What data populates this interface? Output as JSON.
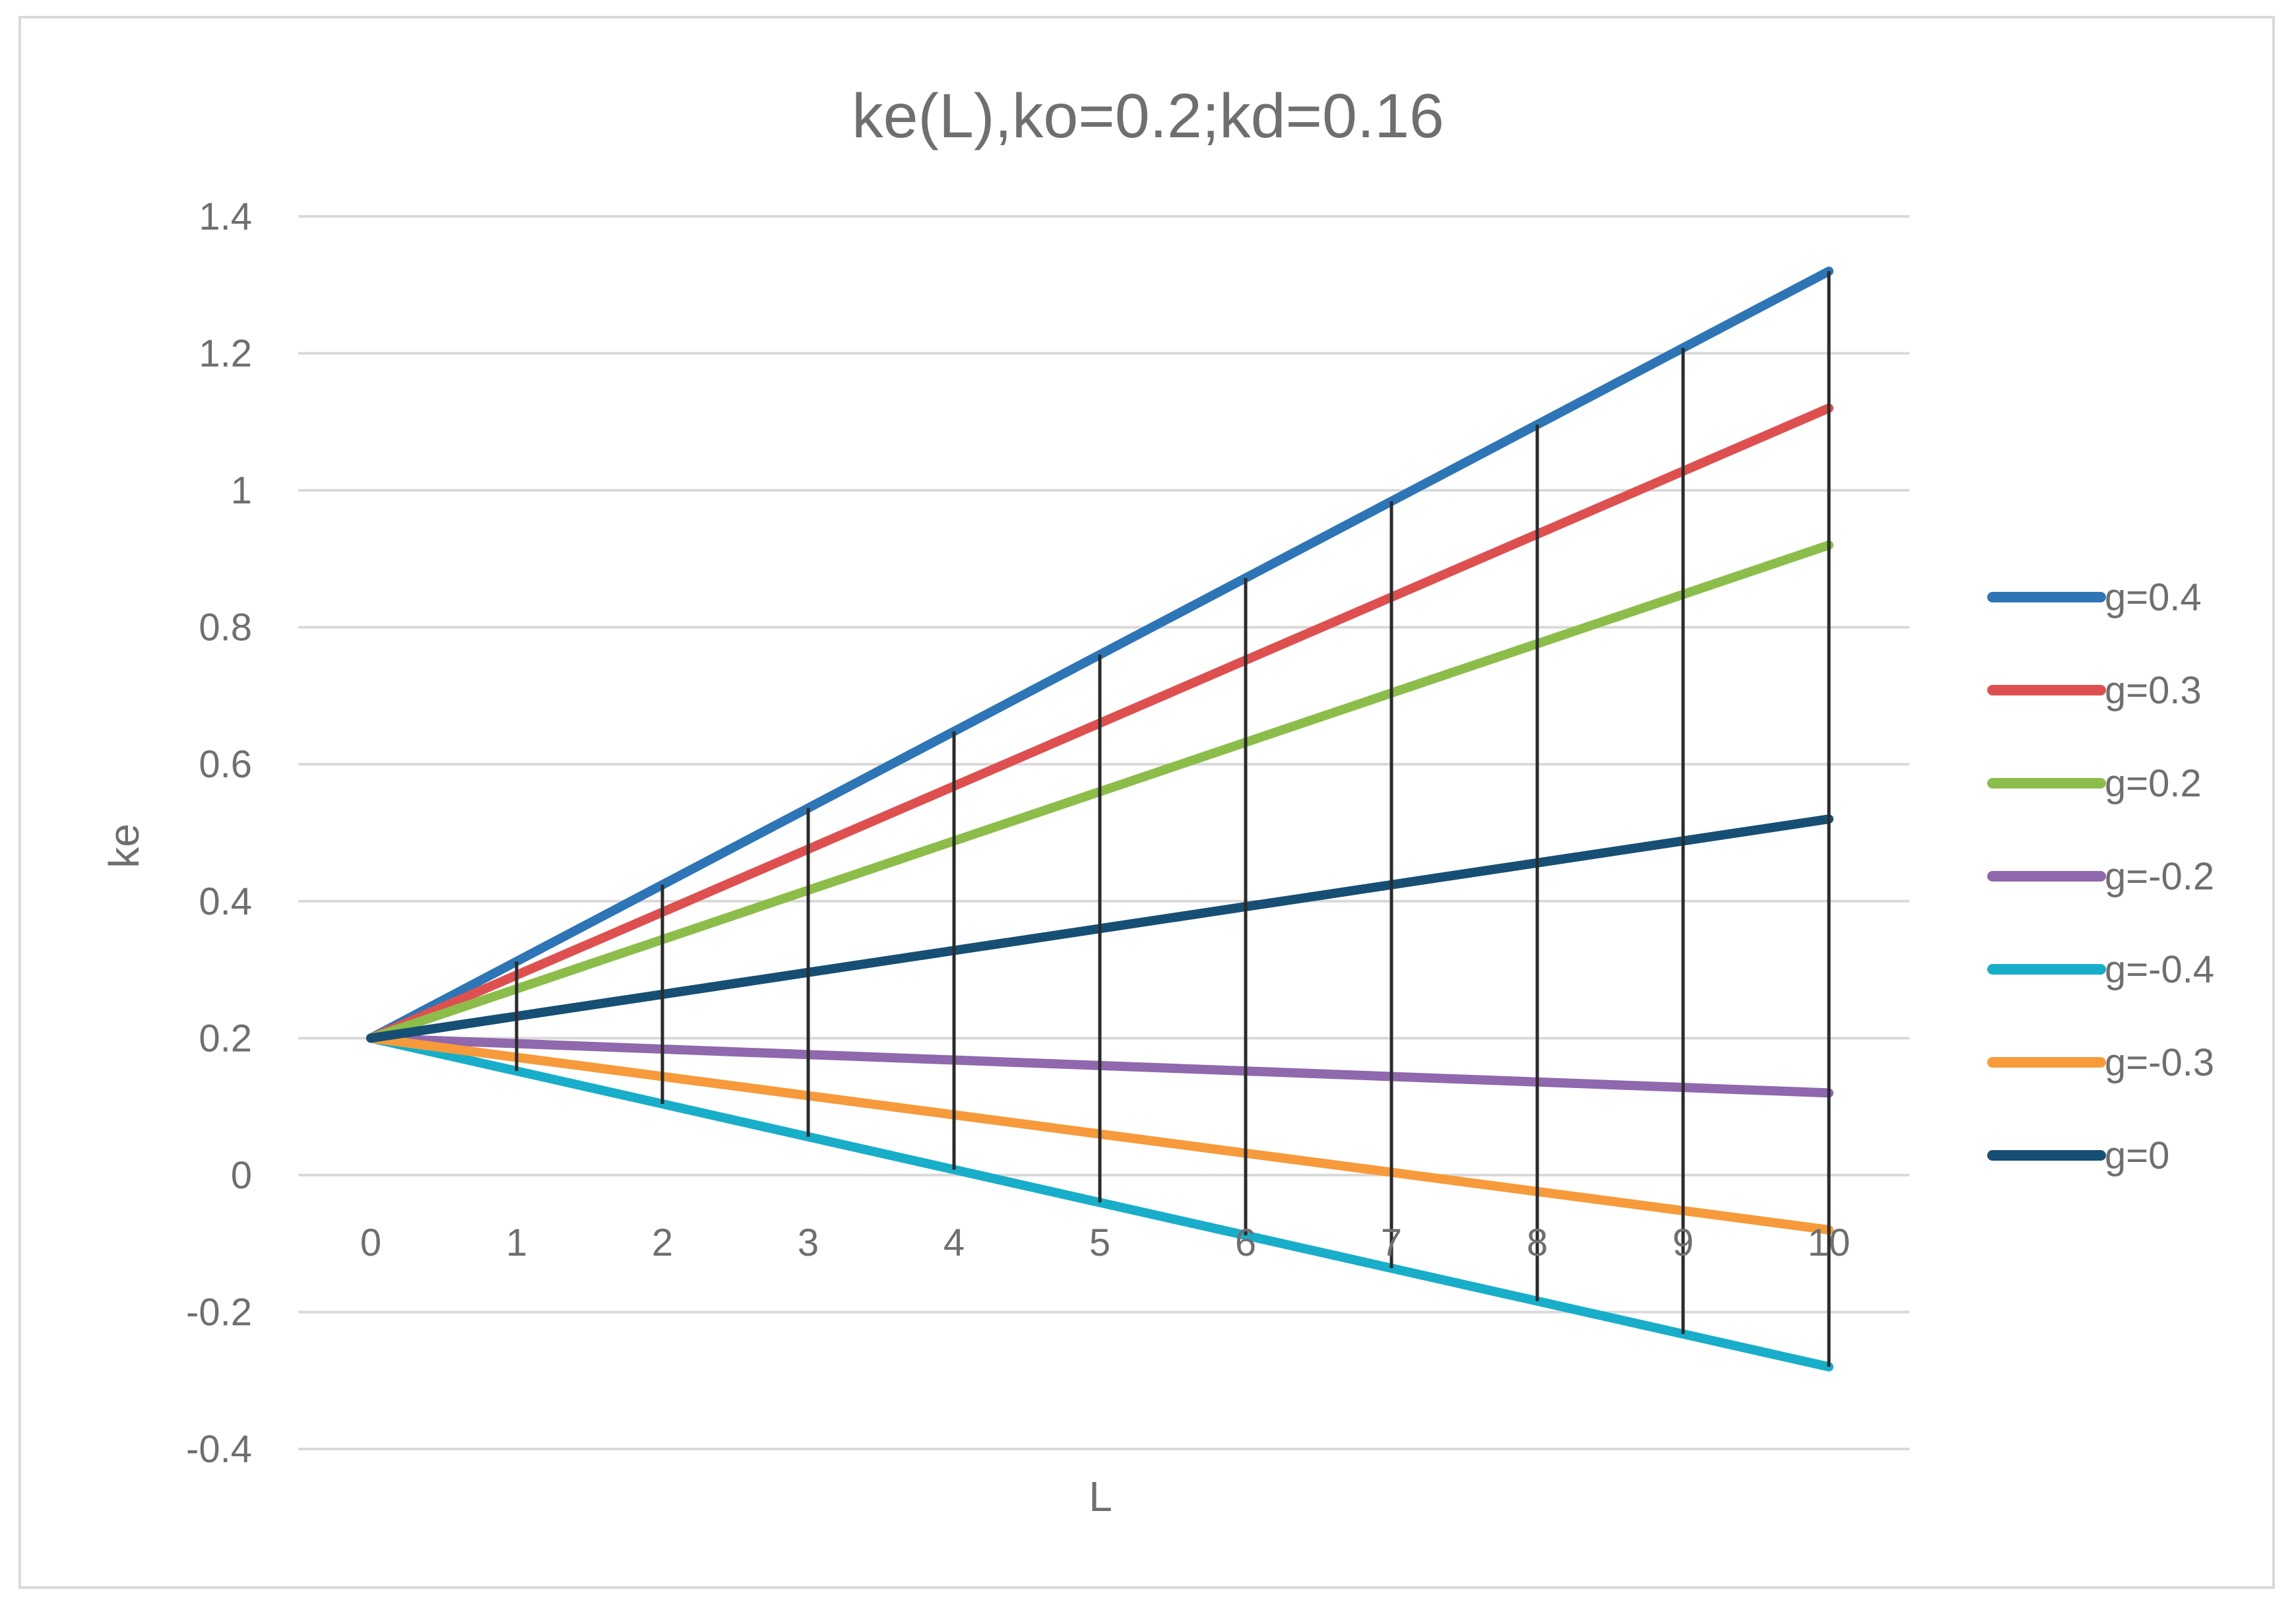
{
  "chart_data": {
    "type": "line",
    "title": "ke(L),ko=0.2;kd=0.16",
    "xlabel": "L",
    "ylabel": "ke",
    "categories": [
      "0",
      "1",
      "2",
      "3",
      "4",
      "5",
      "6",
      "7",
      "8",
      "9",
      "10"
    ],
    "x": [
      0,
      1,
      2,
      3,
      4,
      5,
      6,
      7,
      8,
      9,
      10
    ],
    "ylim": [
      -0.4,
      1.4
    ],
    "yticks": [
      -0.4,
      -0.2,
      0,
      0.2,
      0.4,
      0.6,
      0.8,
      1,
      1.2,
      1.4
    ],
    "ytick_labels": [
      "-0.4",
      "-0.2",
      "0",
      "0.2",
      "0.4",
      "0.6",
      "0.8",
      "1",
      "1.2",
      "1.4"
    ],
    "grid": true,
    "legend_position": "right",
    "series": [
      {
        "name": "g=0.4",
        "color": "#2e75b6",
        "values": [
          0.2,
          0.312,
          0.424,
          0.536,
          0.648,
          0.76,
          0.872,
          0.984,
          1.096,
          1.208,
          1.32
        ]
      },
      {
        "name": "g=0.3",
        "color": "#de5050",
        "values": [
          0.2,
          0.292,
          0.384,
          0.476,
          0.568,
          0.66,
          0.752,
          0.844,
          0.936,
          1.028,
          1.12
        ]
      },
      {
        "name": "g=0.2",
        "color": "#8cbd4a",
        "values": [
          0.2,
          0.272,
          0.344,
          0.416,
          0.488,
          0.56,
          0.632,
          0.704,
          0.776,
          0.848,
          0.92
        ]
      },
      {
        "name": "g=-0.2",
        "color": "#8f68ad",
        "values": [
          0.2,
          0.192,
          0.184,
          0.176,
          0.168,
          0.16,
          0.152,
          0.144,
          0.136,
          0.128,
          0.12
        ]
      },
      {
        "name": "g=-0.4",
        "color": "#18aec9",
        "values": [
          0.2,
          0.152,
          0.104,
          0.056,
          0.008,
          -0.04,
          -0.088,
          -0.136,
          -0.184,
          -0.232,
          -0.28
        ]
      },
      {
        "name": "g=-0.3",
        "color": "#f79a3b",
        "values": [
          0.2,
          0.172,
          0.144,
          0.116,
          0.088,
          0.06,
          0.032,
          0.004,
          -0.024,
          -0.052,
          -0.08
        ]
      },
      {
        "name": "g=0",
        "color": "#174f74",
        "values": [
          0.2,
          0.232,
          0.264,
          0.296,
          0.328,
          0.36,
          0.392,
          0.424,
          0.456,
          0.488,
          0.52
        ]
      }
    ],
    "drop_lines": {
      "color": "#2b2b2b",
      "between": [
        "g=0.4",
        "g=-0.4"
      ]
    }
  }
}
